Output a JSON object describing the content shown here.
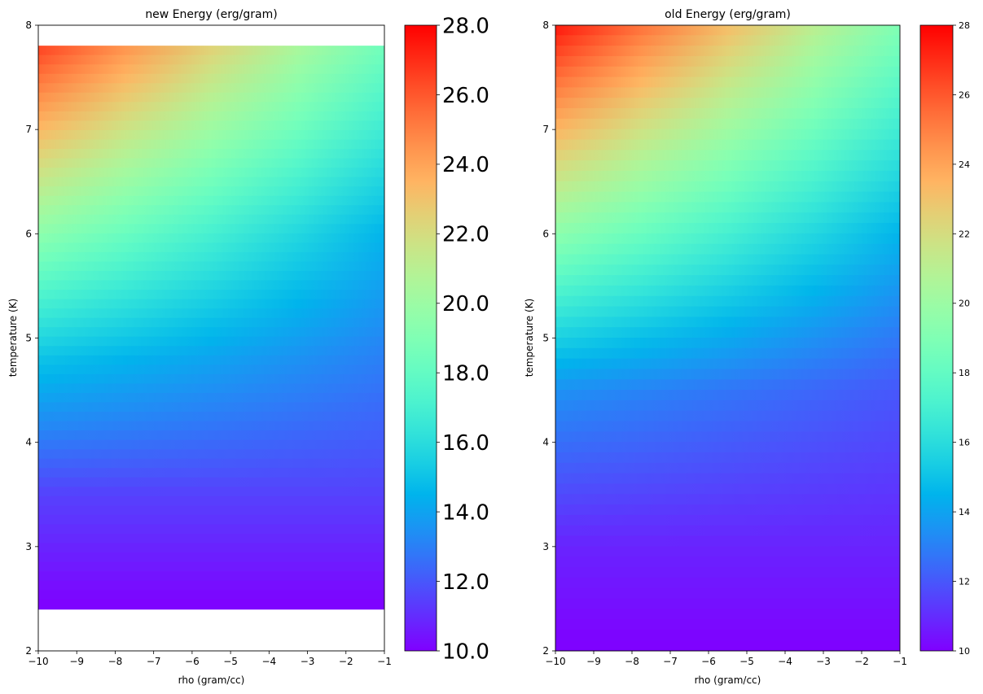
{
  "chart_data": [
    {
      "type": "heatmap",
      "title": "new Energy (erg/gram)",
      "xlabel": "rho (gram/cc)",
      "ylabel": "temperature (K)",
      "xlim": [
        -10,
        -1
      ],
      "ylim": [
        2,
        8
      ],
      "x_ticks": [
        -10,
        -9,
        -8,
        -7,
        -6,
        -5,
        -4,
        -3,
        -2,
        -1
      ],
      "y_ticks": [
        2,
        3,
        4,
        5,
        6,
        7,
        8
      ],
      "data_extent": {
        "x": [
          -10,
          -1
        ],
        "y": [
          2.4,
          7.8
        ]
      },
      "grid": false,
      "colormap": "rainbow",
      "colorbar": {
        "range": [
          10,
          28
        ],
        "ticks": [
          10,
          12,
          14,
          16,
          18,
          20,
          22,
          24,
          26,
          28
        ],
        "tick_labels": [
          "10.0",
          "12.0",
          "14.0",
          "16.0",
          "18.0",
          "20.0",
          "22.0",
          "24.0",
          "26.0",
          "28.0"
        ]
      },
      "regions": [
        {
          "temperature": 7.8,
          "energy_at_rho_-10": 26.5,
          "energy_at_rho_-1": 18.5
        },
        {
          "temperature": 6.0,
          "energy_at_rho_-10": 19.5,
          "energy_at_rho_-1": 14.5
        },
        {
          "temperature": 4.8,
          "energy_at_rho_-10": 15.0,
          "energy_at_rho_-1": 13.0
        },
        {
          "temperature": 3.5,
          "energy_at_rho_-10": 11.5,
          "energy_at_rho_-1": 11.5
        },
        {
          "temperature": 2.4,
          "energy_at_rho_-10": 10.0,
          "energy_at_rho_-1": 10.0
        }
      ]
    },
    {
      "type": "heatmap",
      "title": "old Energy (erg/gram)",
      "xlabel": "rho (gram/cc)",
      "ylabel": "temperature (K)",
      "xlim": [
        -10,
        -1
      ],
      "ylim": [
        2,
        8
      ],
      "x_ticks": [
        -10,
        -9,
        -8,
        -7,
        -6,
        -5,
        -4,
        -3,
        -2,
        -1
      ],
      "y_ticks": [
        2,
        3,
        4,
        5,
        6,
        7,
        8
      ],
      "data_extent": {
        "x": [
          -10,
          -1
        ],
        "y": [
          2,
          8
        ]
      },
      "grid": false,
      "colormap": "rainbow",
      "colorbar": {
        "range": [
          10,
          28
        ],
        "ticks": [
          10,
          12,
          14,
          16,
          18,
          20,
          22,
          24,
          26,
          28
        ],
        "tick_labels": [
          "10",
          "12",
          "14",
          "16",
          "18",
          "20",
          "22",
          "24",
          "26",
          "28"
        ]
      },
      "regions": [
        {
          "temperature": 8.0,
          "energy_at_rho_-10": 27.5,
          "energy_at_rho_-1": 19.0
        },
        {
          "temperature": 6.0,
          "energy_at_rho_-10": 19.5,
          "energy_at_rho_-1": 14.5
        },
        {
          "temperature": 4.5,
          "energy_at_rho_-10": 13.5,
          "energy_at_rho_-1": 12.0
        },
        {
          "temperature": 3.0,
          "energy_at_rho_-10": 10.8,
          "energy_at_rho_-1": 10.8
        },
        {
          "temperature": 2.0,
          "energy_at_rho_-10": 10.0,
          "energy_at_rho_-1": 10.0
        }
      ]
    }
  ]
}
